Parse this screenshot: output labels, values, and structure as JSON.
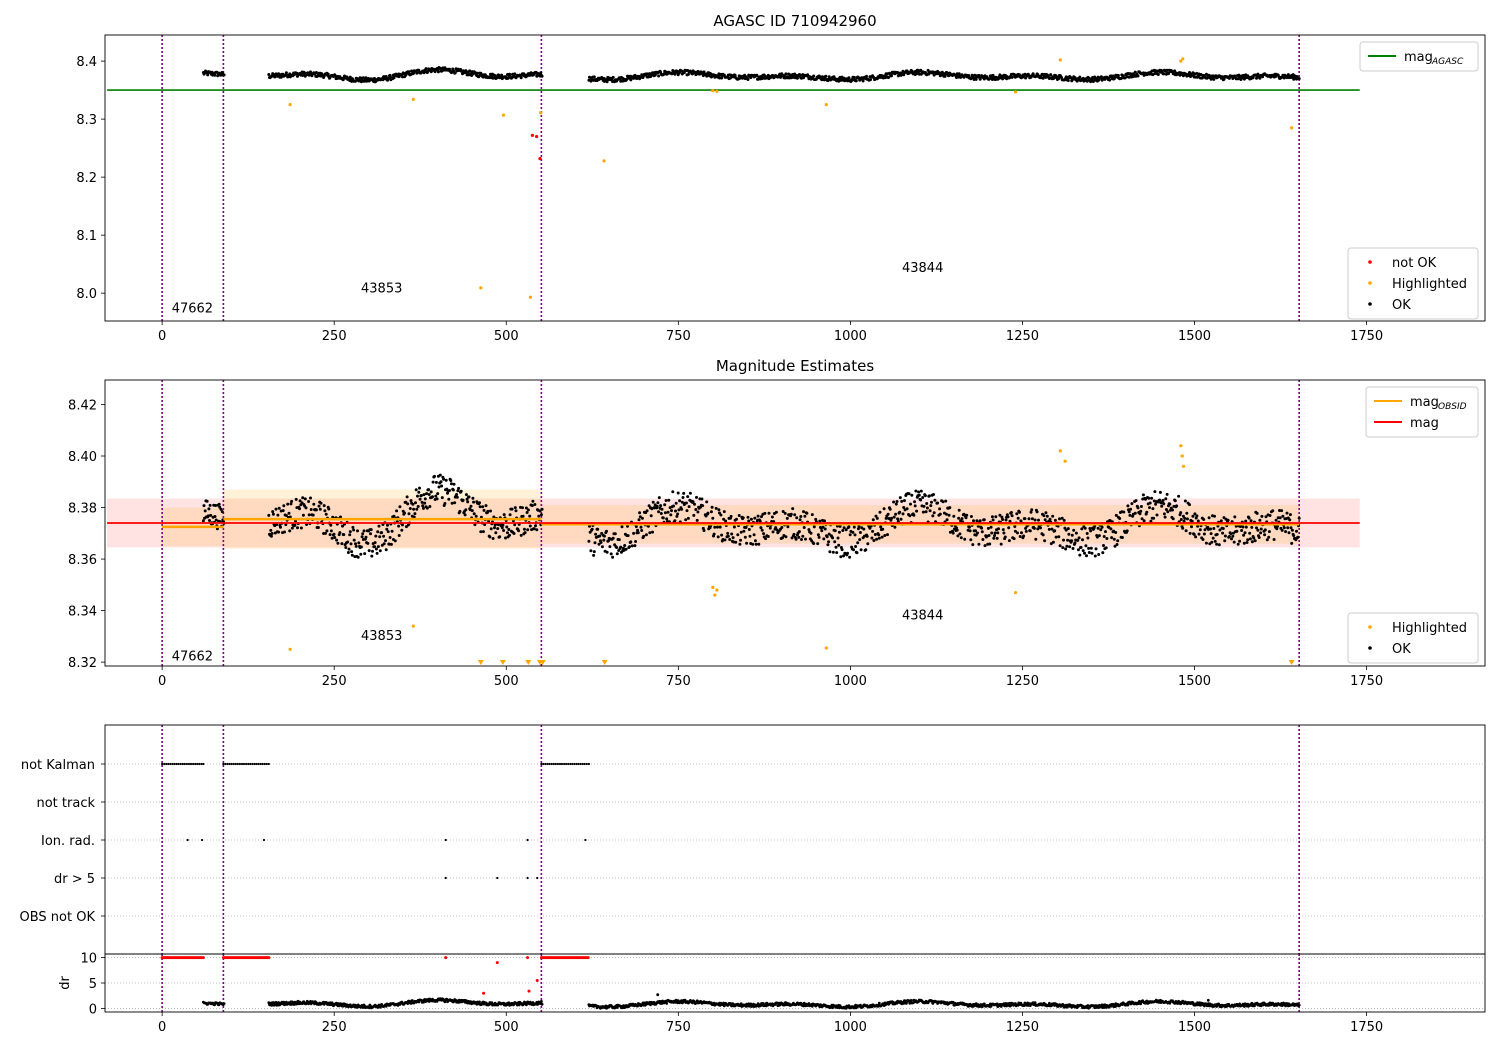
{
  "chart_data": [
    {
      "type": "scatter",
      "title": "AGASC ID 710942960",
      "xlim": [
        -83,
        1922
      ],
      "ylim": [
        7.952,
        8.445
      ],
      "x_ticks": [
        "0",
        "250",
        "500",
        "750",
        "1000",
        "1250",
        "1500",
        "1750"
      ],
      "y_ticks": [
        "8.0",
        "8.1",
        "8.2",
        "8.3",
        "8.4"
      ],
      "y_tick_values": [
        8.0,
        8.1,
        8.2,
        8.3,
        8.4
      ],
      "grid": false,
      "obsid_boundaries": [
        0,
        89,
        551,
        1652
      ],
      "obsid_labels": [
        {
          "text": "47662",
          "x": 44,
          "y": 7.975
        },
        {
          "text": "43853",
          "x": 319,
          "y": 8.01
        },
        {
          "text": "43844",
          "x": 1105,
          "y": 8.045
        }
      ],
      "mag_agasc": 8.35,
      "mag_agasc_range": [
        -80,
        1740
      ],
      "legend_lines": [
        {
          "name": "mag",
          "sub": "AGASC",
          "color": "#008000"
        }
      ],
      "legend_points": [
        {
          "name": "not OK",
          "color": "#ff0000"
        },
        {
          "name": "Highlighted",
          "color": "#ffa500"
        },
        {
          "name": "OK",
          "color": "#000000"
        }
      ],
      "legend_placement": [
        "upper right",
        "lower right"
      ],
      "series": [
        {
          "name": "not OK",
          "color": "#ff0000",
          "x": [
            538,
            544,
            549
          ],
          "y": [
            8.272,
            8.27,
            8.232
          ]
        },
        {
          "name": "Highlighted",
          "color": "#ffa500",
          "x": [
            186,
            365,
            463,
            496,
            535,
            550,
            642,
            800,
            806,
            965,
            1240,
            1305,
            1480,
            1483,
            1641
          ],
          "y": [
            8.325,
            8.334,
            8.009,
            8.307,
            7.993,
            8.311,
            8.228,
            8.349,
            8.348,
            8.325,
            8.347,
            8.402,
            8.4,
            8.404,
            8.285
          ]
        },
        {
          "name": "OK",
          "color": "#000000",
          "segments": [
            {
              "x": [
                60,
                90
              ],
              "n": 30,
              "base": 8.374,
              "amp": 0.006,
              "jitter": 0.004
            },
            {
              "x": [
                155,
                552
              ],
              "n": 420,
              "base": 8.376,
              "amp": 0.01,
              "jitter": 0.004
            },
            {
              "x": [
                620,
                1652
              ],
              "n": 1050,
              "base": 8.374,
              "amp": 0.007,
              "jitter": 0.004
            }
          ]
        }
      ]
    },
    {
      "type": "scatter",
      "title": "Magnitude Estimates",
      "xlim": [
        -83,
        1922
      ],
      "ylim": [
        8.3185,
        8.4295
      ],
      "x_ticks": [
        "0",
        "250",
        "500",
        "750",
        "1000",
        "1250",
        "1500",
        "1750"
      ],
      "y_ticks": [
        "8.32",
        "8.34",
        "8.36",
        "8.38",
        "8.40",
        "8.42"
      ],
      "y_tick_values": [
        8.32,
        8.34,
        8.36,
        8.38,
        8.4,
        8.42
      ],
      "grid": false,
      "obsid_boundaries": [
        0,
        89,
        551,
        1652
      ],
      "obsid_labels": [
        {
          "text": "47662",
          "x": 44,
          "y": 8.3225
        },
        {
          "text": "43853",
          "x": 319,
          "y": 8.3305
        },
        {
          "text": "43844",
          "x": 1105,
          "y": 8.3385
        }
      ],
      "mag": 8.374,
      "mag_band": [
        8.3645,
        8.3835
      ],
      "mag_range": [
        -80,
        1740
      ],
      "mag_obsid": [
        {
          "x": [
            0,
            89
          ],
          "y": 8.3725,
          "band": [
            8.365,
            8.38
          ]
        },
        {
          "x": [
            89,
            551
          ],
          "y": 8.3755,
          "band": [
            8.364,
            8.387
          ]
        },
        {
          "x": [
            551,
            1652
          ],
          "y": 8.3735,
          "band": [
            8.366,
            8.381
          ]
        }
      ],
      "legend_lines": [
        {
          "name": "mag",
          "sub": "OBSID",
          "color": "#ffa500"
        },
        {
          "name": "mag",
          "sub": "",
          "color": "#ff0000"
        }
      ],
      "legend_points": [
        {
          "name": "Highlighted",
          "color": "#ffa500"
        },
        {
          "name": "OK",
          "color": "#000000"
        }
      ],
      "legend_placement": [
        "upper right",
        "lower right"
      ],
      "series": [
        {
          "name": "Highlighted",
          "color": "#ffa500",
          "x": [
            186,
            365,
            800,
            803,
            806,
            965,
            1240,
            1305,
            1312,
            1480,
            1482,
            1484
          ],
          "y": [
            8.325,
            8.334,
            8.349,
            8.346,
            8.348,
            8.3255,
            8.347,
            8.402,
            8.398,
            8.404,
            8.4,
            8.396
          ]
        },
        {
          "name": "Highlighted (below range)",
          "color": "#ffa500",
          "marker": "triangle-down",
          "x": [
            463,
            495,
            532,
            549,
            553,
            643,
            1641
          ],
          "y": [
            8.32,
            8.32,
            8.32,
            8.32,
            8.32,
            8.32,
            8.32
          ]
        },
        {
          "name": "OK",
          "color": "#000000",
          "segments": [
            {
              "x": [
                60,
                90
              ],
              "n": 35,
              "base": 8.373,
              "amp": 0.006,
              "jitter": 0.005
            },
            {
              "x": [
                155,
                552
              ],
              "n": 420,
              "base": 8.376,
              "amp": 0.012,
              "jitter": 0.006
            },
            {
              "x": [
                620,
                1652
              ],
              "n": 1050,
              "base": 8.373,
              "amp": 0.008,
              "jitter": 0.006
            }
          ]
        }
      ]
    },
    {
      "type": "scatter",
      "title": "",
      "xlim": [
        -83,
        1922
      ],
      "x_ticks": [
        "0",
        "250",
        "500",
        "750",
        "1000",
        "1250",
        "1500",
        "1750"
      ],
      "categories": [
        "not Kalman",
        "not track",
        "Ion. rad.",
        "dr > 5",
        "OBS not OK"
      ],
      "obsid_boundaries": [
        0,
        89,
        551,
        1652
      ],
      "flags": [
        {
          "category": "not Kalman",
          "ranges": [
            [
              0,
              60
            ],
            [
              89,
              156
            ],
            [
              551,
              620
            ]
          ],
          "points": []
        },
        {
          "category": "not track",
          "ranges": [],
          "points": []
        },
        {
          "category": "Ion. rad.",
          "ranges": [],
          "points": [
            37,
            58,
            148,
            412,
            531,
            615
          ]
        },
        {
          "category": "dr > 5",
          "ranges": [],
          "points": [
            412,
            487,
            531,
            545
          ]
        },
        {
          "category": "OBS not OK",
          "ranges": [],
          "points": []
        }
      ]
    },
    {
      "type": "scatter",
      "title": "",
      "xlim": [
        -83,
        1922
      ],
      "ylim": [
        -0.7,
        10.7
      ],
      "ylabel": "dr",
      "x_ticks": [
        "0",
        "250",
        "500",
        "750",
        "1000",
        "1250",
        "1500",
        "1750"
      ],
      "y_ticks": [
        "0",
        "5",
        "10"
      ],
      "y_tick_values": [
        0,
        5,
        10
      ],
      "grid": true,
      "obsid_boundaries": [
        0,
        89,
        551,
        1652
      ],
      "series": [
        {
          "name": "not OK (clipped at 10)",
          "color": "#ff0000",
          "ranges": [
            [
              0,
              60
            ],
            [
              89,
              156
            ],
            [
              551,
              620
            ]
          ],
          "y": 10
        },
        {
          "name": "not OK",
          "color": "#ff0000",
          "x": [
            412,
            467,
            487,
            531,
            533,
            545
          ],
          "y": [
            10,
            3.0,
            9.0,
            10,
            3.4,
            5.5
          ]
        },
        {
          "name": "OK",
          "color": "#000000",
          "segments": [
            {
              "x": [
                60,
                90
              ],
              "n": 25,
              "base": 0.6,
              "amp": 0.5,
              "jitter": 0.25
            },
            {
              "x": [
                155,
                552
              ],
              "n": 420,
              "base": 1.0,
              "amp": 0.7,
              "jitter": 0.3
            },
            {
              "x": [
                620,
                1652
              ],
              "n": 1050,
              "base": 0.8,
              "amp": 0.6,
              "jitter": 0.3
            }
          ],
          "outliers": {
            "x": [
              720,
              1520
            ],
            "y": [
              2.7,
              1.6
            ]
          }
        }
      ]
    }
  ]
}
